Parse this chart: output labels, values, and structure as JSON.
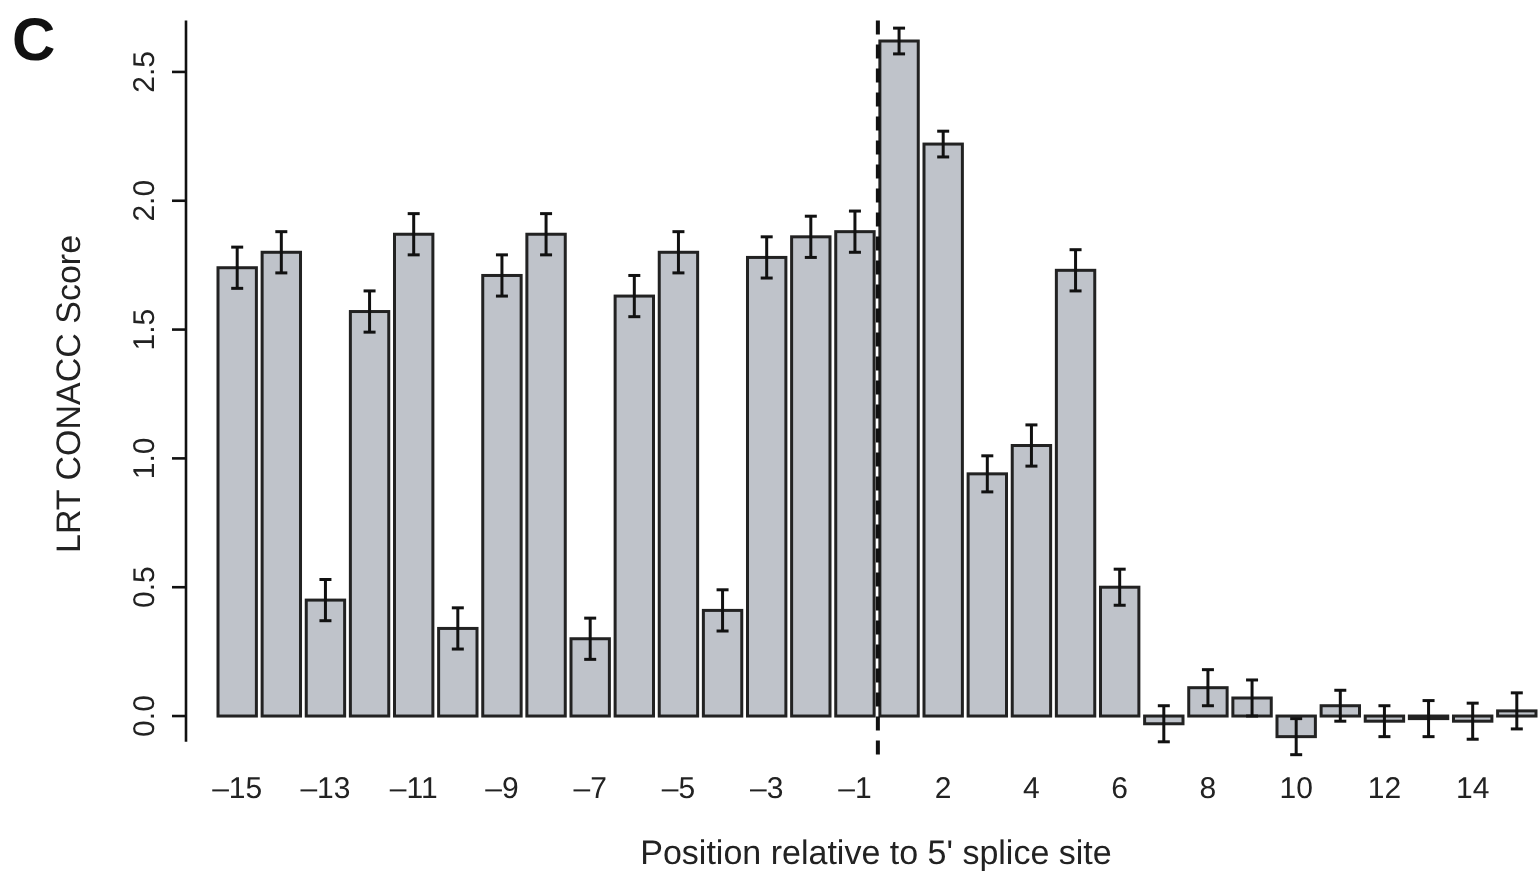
{
  "chart_data": {
    "type": "bar",
    "xlabel": "Position relative to 5' splice site",
    "ylabel": "LRT CONACC Score",
    "annotations": [
      "C"
    ],
    "categories": [
      "–15",
      null,
      "–13",
      null,
      "–11",
      null,
      "–9",
      null,
      "–7",
      null,
      "–5",
      null,
      "–3",
      null,
      "–1",
      null,
      "2",
      null,
      "4",
      null,
      "6",
      null,
      "8",
      null,
      "10",
      null,
      "12",
      null,
      "14",
      null
    ],
    "values": [
      1.74,
      1.8,
      0.45,
      1.57,
      1.87,
      0.34,
      1.71,
      1.87,
      0.3,
      1.63,
      1.8,
      0.41,
      1.78,
      1.86,
      1.88,
      2.62,
      2.22,
      0.94,
      1.05,
      1.73,
      0.5,
      -0.03,
      0.11,
      0.07,
      -0.08,
      0.04,
      -0.02,
      -0.01,
      -0.02,
      0.02
    ],
    "errors": [
      0.08,
      0.08,
      0.08,
      0.08,
      0.08,
      0.08,
      0.08,
      0.08,
      0.08,
      0.08,
      0.08,
      0.08,
      0.08,
      0.08,
      0.08,
      0.05,
      0.05,
      0.07,
      0.08,
      0.08,
      0.07,
      0.07,
      0.07,
      0.07,
      0.07,
      0.06,
      0.06,
      0.07,
      0.07,
      0.07
    ],
    "color": "#bfc3ca",
    "ylim": [
      -0.1,
      2.7
    ],
    "yticks": [
      {
        "value": 0,
        "label": "0.0"
      },
      0.5,
      {
        "value": 1,
        "label": "1.0"
      },
      1.5,
      {
        "value": 2,
        "label": "2.0"
      },
      2.5
    ],
    "grid": false
  }
}
